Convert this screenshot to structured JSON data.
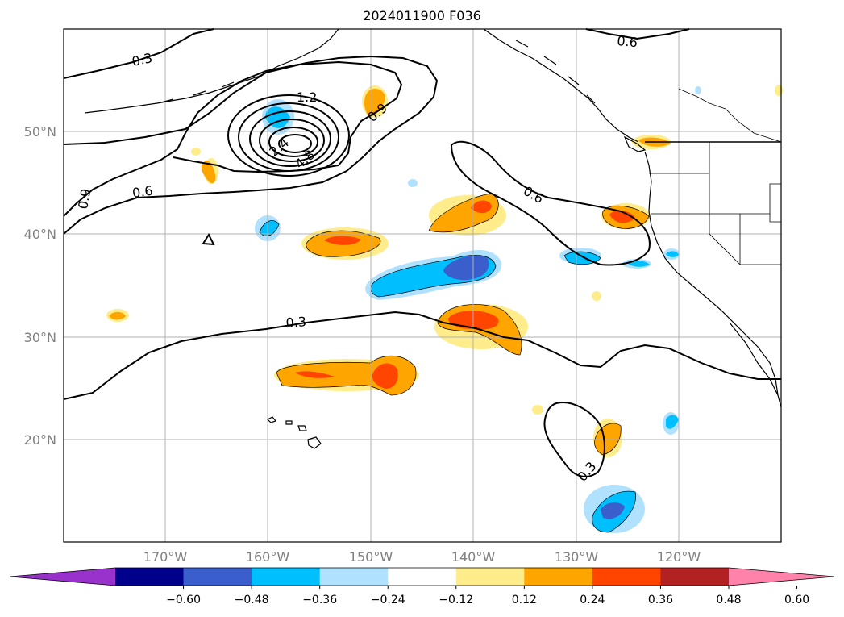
{
  "title": "2024011900 F036",
  "map": {
    "lat_labels": [
      "50°N",
      "40°N",
      "30°N",
      "20°N"
    ],
    "lon_labels": [
      "170°W",
      "160°W",
      "150°W",
      "140°W",
      "130°W",
      "120°W"
    ],
    "contour_labels": [
      "0.3",
      "0.6",
      "0.9",
      "1.2",
      "0.9",
      "0.6",
      "0.3",
      "0.3",
      "0.6",
      "2.4",
      "4.8"
    ]
  },
  "colorbar": {
    "tick_labels": [
      "−0.60",
      "−0.48",
      "−0.36",
      "−0.24",
      "−0.12",
      "0.12",
      "0.24",
      "0.36",
      "0.48",
      "0.60"
    ],
    "colors": [
      "#9932cc",
      "#00008b",
      "#3a5fcd",
      "#00bfff",
      "#b0e2ff",
      "#ffffff",
      "#ffec8b",
      "#ffa500",
      "#ff4500",
      "#b22222",
      "#ff82ab"
    ]
  },
  "colors": {
    "contour": "#000000",
    "grid": "#b0b0b0",
    "coast": "#000000"
  }
}
